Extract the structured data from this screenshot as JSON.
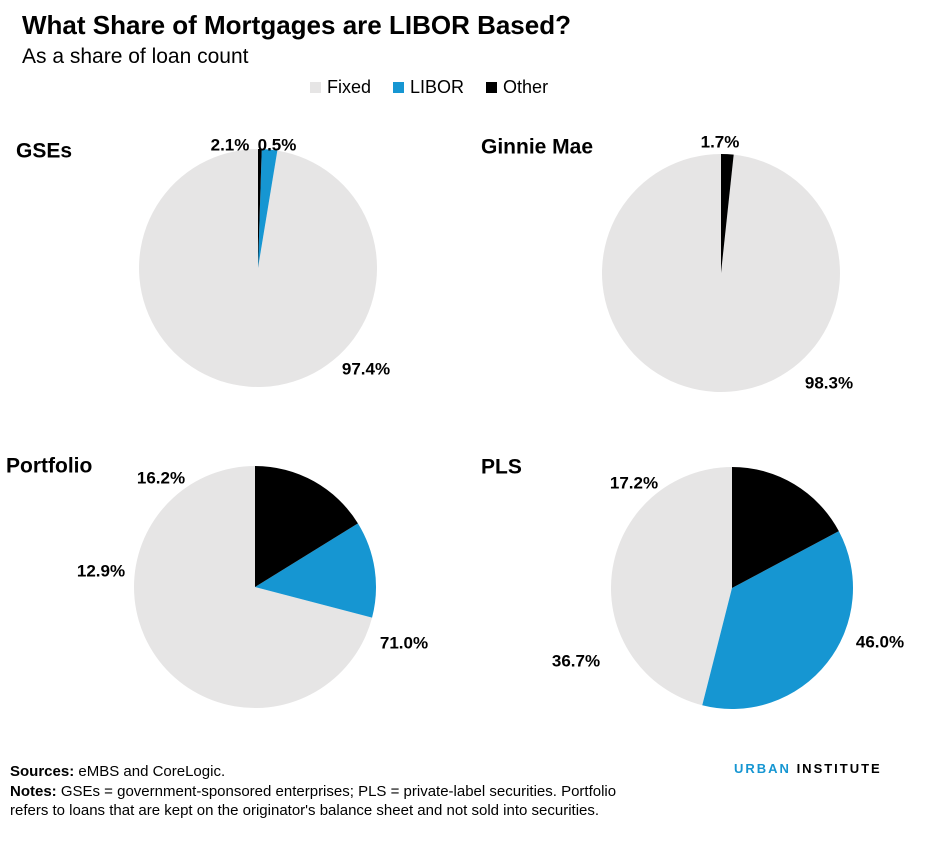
{
  "title": "What Share of Mortgages are LIBOR Based?",
  "subtitle": "As a share of loan count",
  "legend": [
    {
      "label": "Fixed",
      "color": "#e6e5e5"
    },
    {
      "label": "LIBOR",
      "color": "#1696d2"
    },
    {
      "label": "Other",
      "color": "#000000"
    }
  ],
  "chart_data": [
    {
      "type": "pie",
      "title": "GSEs",
      "slices": [
        {
          "label": "Fixed",
          "value": 97.4,
          "text": "97.4%",
          "color": "#e6e5e5"
        },
        {
          "label": "LIBOR",
          "value": 2.1,
          "text": "2.1%",
          "color": "#1696d2"
        },
        {
          "label": "Other",
          "value": 0.5,
          "text": "0.5%",
          "color": "#000000"
        }
      ]
    },
    {
      "type": "pie",
      "title": "Ginnie Mae",
      "slices": [
        {
          "label": "Fixed",
          "value": 98.3,
          "text": "98.3%",
          "color": "#e6e5e5"
        },
        {
          "label": "LIBOR",
          "value": 0,
          "text": "",
          "color": "#1696d2"
        },
        {
          "label": "Other",
          "value": 1.7,
          "text": "1.7%",
          "color": "#000000"
        }
      ]
    },
    {
      "type": "pie",
      "title": "Portfolio",
      "slices": [
        {
          "label": "Fixed",
          "value": 71.0,
          "text": "71.0%",
          "color": "#e6e5e5"
        },
        {
          "label": "LIBOR",
          "value": 12.9,
          "text": "12.9%",
          "color": "#1696d2"
        },
        {
          "label": "Other",
          "value": 16.2,
          "text": "16.2%",
          "color": "#000000"
        }
      ]
    },
    {
      "type": "pie",
      "title": "PLS",
      "slices": [
        {
          "label": "Fixed",
          "value": 46.0,
          "text": "46.0%",
          "color": "#e6e5e5"
        },
        {
          "label": "LIBOR",
          "value": 36.7,
          "text": "36.7%",
          "color": "#1696d2"
        },
        {
          "label": "Other",
          "value": 17.2,
          "text": "17.2%",
          "color": "#000000"
        }
      ]
    }
  ],
  "footer": {
    "sources_label": "Sources:",
    "sources_text": " eMBS and CoreLogic.",
    "notes_label": "Notes:",
    "notes_text": " GSEs = government-sponsored enterprises; PLS = private-label securities. Portfolio refers to loans that are kept on the originator's balance sheet and not sold into securities."
  },
  "brand": {
    "part1": "URBAN",
    "part2": " INSTITUTE"
  }
}
